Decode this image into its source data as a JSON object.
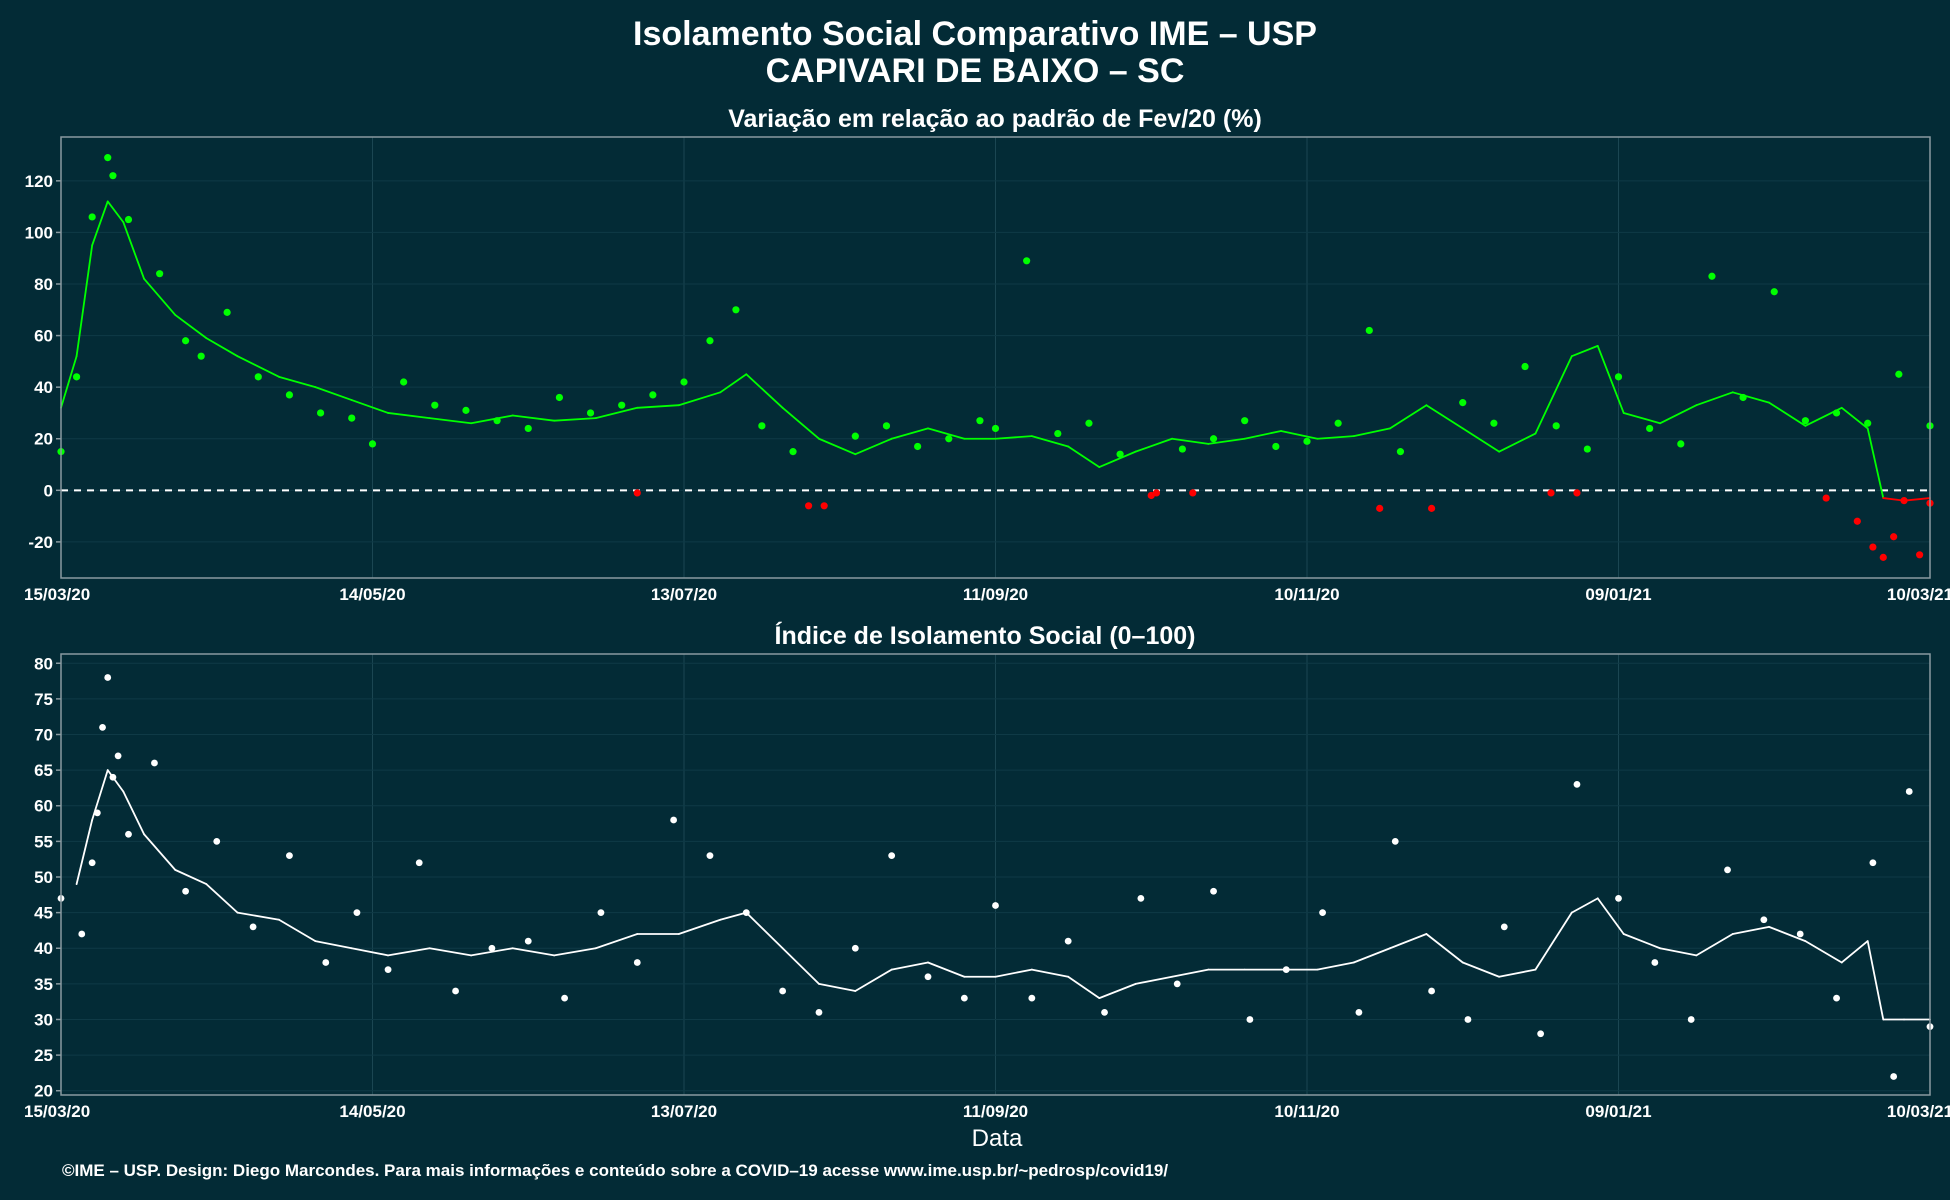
{
  "title_line1": "Isolamento Social Comparativo IME – USP",
  "title_line2": "CAPIVARI DE BAIXO – SC",
  "x_axis_label": "Data",
  "footer": "©IME – USP. Design: Diego Marcondes. Para mais informações e conteúdo sobre a COVID–19 acesse www.ime.usp.br/~pedrosp/covid19/",
  "colors": {
    "background": "#032b36",
    "positive": "#00ff00",
    "negative": "#ff0000",
    "index": "#ffffff",
    "zero_line": "#ffffff",
    "frame": "#8a9aa0"
  },
  "chart_data": [
    {
      "type": "scatter",
      "title": "Variação em relação ao padrão de Fev/20 (%)",
      "xlabel": "",
      "ylabel": "",
      "x_start": "2020-03-15",
      "x_end": "2021-03-10",
      "ylim": [
        -34,
        137
      ],
      "yticks": [
        "120",
        "100",
        "80",
        "60",
        "40",
        "20",
        "0",
        "-20"
      ],
      "ytick_values": [
        120,
        100,
        80,
        60,
        40,
        20,
        0,
        -20
      ],
      "xticks": [
        "15/03/20",
        "14/05/20",
        "13/07/20",
        "11/09/20",
        "10/11/20",
        "09/01/21",
        "10/03/21"
      ],
      "xtick_dates": [
        "2020-03-15",
        "2020-05-14",
        "2020-07-13",
        "2020-09-11",
        "2020-11-10",
        "2021-01-09",
        "2021-03-10"
      ],
      "reference_line": 0,
      "series": [
        {
          "name": "",
          "kind": "points",
          "x": [
            "2020-03-15",
            "2020-03-18",
            "2020-03-21",
            "2020-03-24",
            "2020-03-25",
            "2020-03-28",
            "2020-04-03",
            "2020-04-08",
            "2020-04-11",
            "2020-04-16",
            "2020-04-22",
            "2020-04-28",
            "2020-05-04",
            "2020-05-10",
            "2020-05-14",
            "2020-05-20",
            "2020-05-26",
            "2020-06-01",
            "2020-06-07",
            "2020-06-13",
            "2020-06-19",
            "2020-06-25",
            "2020-07-01",
            "2020-07-07",
            "2020-07-13",
            "2020-07-18",
            "2020-07-23",
            "2020-07-28",
            "2020-08-03",
            "2020-08-09",
            "2020-08-15",
            "2020-08-21",
            "2020-08-27",
            "2020-09-02",
            "2020-09-08",
            "2020-09-11",
            "2020-09-17",
            "2020-09-23",
            "2020-09-29",
            "2020-10-05",
            "2020-10-11",
            "2020-10-17",
            "2020-10-23",
            "2020-10-29",
            "2020-11-04",
            "2020-11-10",
            "2020-11-16",
            "2020-11-22",
            "2020-11-28",
            "2020-12-04",
            "2020-12-10",
            "2020-12-16",
            "2020-12-22",
            "2020-12-28",
            "2021-01-03",
            "2021-01-09",
            "2021-01-15",
            "2021-01-21",
            "2021-01-27",
            "2021-02-02",
            "2021-02-08",
            "2021-02-14",
            "2021-02-20",
            "2021-02-26",
            "2021-03-04",
            "2021-03-10"
          ],
          "y": [
            15,
            44,
            106,
            129,
            122,
            105,
            84,
            58,
            52,
            69,
            44,
            37,
            30,
            28,
            18,
            42,
            33,
            31,
            27,
            24,
            36,
            30,
            33,
            37,
            42,
            58,
            70,
            25,
            15,
            -6,
            21,
            25,
            17,
            20,
            27,
            24,
            89,
            22,
            26,
            14,
            -2,
            16,
            20,
            27,
            17,
            19,
            26,
            62,
            15,
            -7,
            34,
            26,
            48,
            25,
            16,
            44,
            24,
            18,
            83,
            36,
            77,
            27,
            30,
            26,
            45,
            25
          ]
        },
        {
          "name": "",
          "kind": "line",
          "x": [
            "2020-03-15",
            "2020-03-18",
            "2020-03-21",
            "2020-03-24",
            "2020-03-27",
            "2020-03-31",
            "2020-04-06",
            "2020-04-12",
            "2020-04-18",
            "2020-04-26",
            "2020-05-03",
            "2020-05-10",
            "2020-05-17",
            "2020-05-25",
            "2020-06-02",
            "2020-06-10",
            "2020-06-18",
            "2020-06-26",
            "2020-07-04",
            "2020-07-12",
            "2020-07-20",
            "2020-07-25",
            "2020-08-01",
            "2020-08-08",
            "2020-08-15",
            "2020-08-22",
            "2020-08-29",
            "2020-09-05",
            "2020-09-11",
            "2020-09-18",
            "2020-09-25",
            "2020-10-01",
            "2020-10-08",
            "2020-10-15",
            "2020-10-22",
            "2020-10-29",
            "2020-11-05",
            "2020-11-12",
            "2020-11-19",
            "2020-11-26",
            "2020-12-03",
            "2020-12-10",
            "2020-12-17",
            "2020-12-24",
            "2020-12-31",
            "2021-01-05",
            "2021-01-10",
            "2021-01-17",
            "2021-01-24",
            "2021-01-31",
            "2021-02-07",
            "2021-02-14",
            "2021-02-21",
            "2021-02-26",
            "2021-03-01",
            "2021-03-05",
            "2021-03-10"
          ],
          "y": [
            32,
            52,
            95,
            112,
            104,
            82,
            68,
            59,
            52,
            44,
            40,
            35,
            30,
            28,
            26,
            29,
            27,
            28,
            32,
            33,
            38,
            45,
            32,
            20,
            14,
            20,
            24,
            20,
            20,
            21,
            17,
            9,
            15,
            20,
            18,
            20,
            23,
            20,
            21,
            24,
            33,
            24,
            15,
            22,
            52,
            56,
            30,
            26,
            33,
            38,
            34,
            25,
            32,
            24,
            -3,
            -4,
            -3
          ]
        },
        {
          "name": "",
          "kind": "negative_points",
          "x": [
            "2020-07-04",
            "2020-08-06",
            "2020-10-12",
            "2020-10-19",
            "2020-11-24",
            "2020-12-27",
            "2021-01-01",
            "2021-02-18",
            "2021-02-24",
            "2021-02-27",
            "2021-03-01",
            "2021-03-03",
            "2021-03-05",
            "2021-03-08",
            "2021-03-10"
          ],
          "y": [
            -1,
            -6,
            -1,
            -1,
            -7,
            -1,
            -1,
            -3,
            -12,
            -22,
            -26,
            -18,
            -4,
            -25,
            -5
          ]
        }
      ]
    },
    {
      "type": "scatter",
      "title": "Índice de Isolamento Social (0–100)",
      "xlabel": "Data",
      "ylabel": "",
      "x_start": "2020-03-15",
      "x_end": "2021-03-10",
      "ylim": [
        19.4,
        81.3
      ],
      "yticks": [
        "80",
        "75",
        "70",
        "65",
        "60",
        "55",
        "50",
        "45",
        "40",
        "35",
        "30",
        "25",
        "20"
      ],
      "ytick_values": [
        80,
        75,
        70,
        65,
        60,
        55,
        50,
        45,
        40,
        35,
        30,
        25,
        20
      ],
      "xticks": [
        "15/03/20",
        "14/05/20",
        "13/07/20",
        "11/09/20",
        "10/11/20",
        "09/01/21",
        "10/03/21"
      ],
      "xtick_dates": [
        "2020-03-15",
        "2020-05-14",
        "2020-07-13",
        "2020-09-11",
        "2020-11-10",
        "2021-01-09",
        "2021-03-10"
      ],
      "series": [
        {
          "name": "",
          "kind": "points",
          "x": [
            "2020-03-15",
            "2020-03-19",
            "2020-03-21",
            "2020-03-22",
            "2020-03-23",
            "2020-03-24",
            "2020-03-25",
            "2020-03-26",
            "2020-03-28",
            "2020-04-02",
            "2020-04-08",
            "2020-04-14",
            "2020-04-21",
            "2020-04-28",
            "2020-05-05",
            "2020-05-11",
            "2020-05-17",
            "2020-05-23",
            "2020-05-30",
            "2020-06-06",
            "2020-06-13",
            "2020-06-20",
            "2020-06-27",
            "2020-07-04",
            "2020-07-11",
            "2020-07-18",
            "2020-07-25",
            "2020-08-01",
            "2020-08-08",
            "2020-08-15",
            "2020-08-22",
            "2020-08-29",
            "2020-09-05",
            "2020-09-11",
            "2020-09-18",
            "2020-09-25",
            "2020-10-02",
            "2020-10-09",
            "2020-10-16",
            "2020-10-23",
            "2020-10-30",
            "2020-11-06",
            "2020-11-13",
            "2020-11-20",
            "2020-11-27",
            "2020-12-04",
            "2020-12-11",
            "2020-12-18",
            "2020-12-25",
            "2021-01-01",
            "2021-01-09",
            "2021-01-16",
            "2021-01-23",
            "2021-01-30",
            "2021-02-06",
            "2021-02-13",
            "2021-02-20",
            "2021-02-27",
            "2021-03-03",
            "2021-03-06",
            "2021-03-10"
          ],
          "y": [
            47,
            42,
            52,
            59,
            71,
            78,
            64,
            67,
            56,
            66,
            48,
            55,
            43,
            53,
            38,
            45,
            37,
            52,
            34,
            40,
            41,
            33,
            45,
            38,
            58,
            53,
            45,
            34,
            31,
            40,
            53,
            36,
            33,
            46,
            33,
            41,
            31,
            47,
            35,
            48,
            30,
            37,
            45,
            31,
            55,
            34,
            30,
            43,
            28,
            63,
            47,
            38,
            30,
            51,
            44,
            42,
            33,
            52,
            22,
            62,
            29
          ]
        },
        {
          "name": "",
          "kind": "line",
          "x": [
            "2020-03-18",
            "2020-03-21",
            "2020-03-24",
            "2020-03-27",
            "2020-03-31",
            "2020-04-06",
            "2020-04-12",
            "2020-04-18",
            "2020-04-26",
            "2020-05-03",
            "2020-05-10",
            "2020-05-17",
            "2020-05-25",
            "2020-06-02",
            "2020-06-10",
            "2020-06-18",
            "2020-06-26",
            "2020-07-04",
            "2020-07-12",
            "2020-07-20",
            "2020-07-25",
            "2020-08-01",
            "2020-08-08",
            "2020-08-15",
            "2020-08-22",
            "2020-08-29",
            "2020-09-05",
            "2020-09-11",
            "2020-09-18",
            "2020-09-25",
            "2020-10-01",
            "2020-10-08",
            "2020-10-15",
            "2020-10-22",
            "2020-10-29",
            "2020-11-05",
            "2020-11-12",
            "2020-11-19",
            "2020-11-26",
            "2020-12-03",
            "2020-12-10",
            "2020-12-17",
            "2020-12-24",
            "2020-12-31",
            "2021-01-05",
            "2021-01-10",
            "2021-01-17",
            "2021-01-24",
            "2021-01-31",
            "2021-02-07",
            "2021-02-14",
            "2021-02-21",
            "2021-02-26",
            "2021-03-01",
            "2021-03-05",
            "2021-03-10"
          ],
          "y": [
            49,
            58,
            65,
            62,
            56,
            51,
            49,
            45,
            44,
            41,
            40,
            39,
            40,
            39,
            40,
            39,
            40,
            42,
            42,
            44,
            45,
            40,
            35,
            34,
            37,
            38,
            36,
            36,
            37,
            36,
            33,
            35,
            36,
            37,
            37,
            37,
            37,
            38,
            40,
            42,
            38,
            36,
            37,
            45,
            47,
            42,
            40,
            39,
            42,
            43,
            41,
            38,
            41,
            30,
            30,
            30
          ]
        }
      ]
    }
  ]
}
